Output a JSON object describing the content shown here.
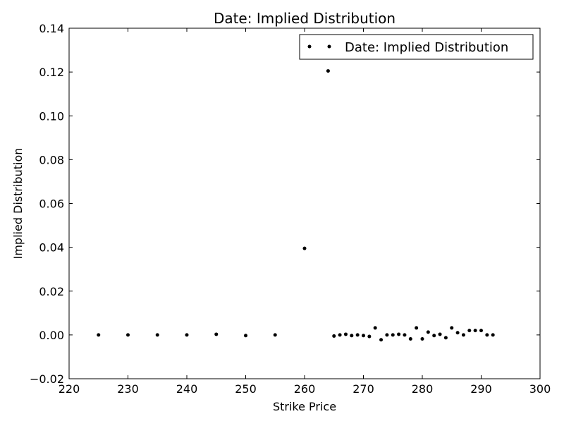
{
  "chart_data": {
    "type": "scatter",
    "title": "Date: Implied Distribution",
    "xlabel": "Strike Price",
    "ylabel": "Implied Distribution",
    "xlim": [
      220,
      300
    ],
    "ylim": [
      -0.02,
      0.14
    ],
    "xticks": [
      220,
      230,
      240,
      250,
      260,
      270,
      280,
      290,
      300
    ],
    "xtick_labels": [
      "220",
      "230",
      "240",
      "250",
      "260",
      "270",
      "280",
      "290",
      "300"
    ],
    "yticks": [
      -0.02,
      0.0,
      0.02,
      0.04,
      0.06,
      0.08,
      0.1,
      0.12,
      0.14
    ],
    "ytick_labels": [
      "−0.02",
      "0.00",
      "0.02",
      "0.04",
      "0.06",
      "0.08",
      "0.10",
      "0.12",
      "0.14"
    ],
    "grid": false,
    "legend": {
      "position": "top-right",
      "entries": [
        "Date: Implied Distribution"
      ]
    },
    "series": [
      {
        "name": "Date: Implied Distribution",
        "color": "#000000",
        "marker": "dot",
        "x": [
          225,
          230,
          235,
          240,
          245,
          250,
          255,
          260,
          264,
          265,
          266,
          267,
          268,
          269,
          270,
          271,
          272,
          273,
          274,
          275,
          276,
          277,
          278,
          279,
          280,
          281,
          282,
          283,
          284,
          285,
          286,
          287,
          288,
          289,
          290,
          291,
          292
        ],
        "y": [
          0.0,
          0.0,
          0.0,
          0.0,
          0.0003,
          -0.0003,
          0.0,
          0.0395,
          0.1205,
          -0.0005,
          0.0,
          0.0003,
          -0.0003,
          0.0,
          -0.0003,
          -0.0007,
          0.0032,
          -0.0022,
          0.0,
          0.0,
          0.0003,
          0.0,
          -0.0018,
          0.0032,
          -0.0018,
          0.0013,
          -0.0003,
          0.0003,
          -0.0013,
          0.0032,
          0.001,
          0.0,
          0.002,
          0.002,
          0.002,
          0.0,
          0.0
        ]
      }
    ]
  }
}
